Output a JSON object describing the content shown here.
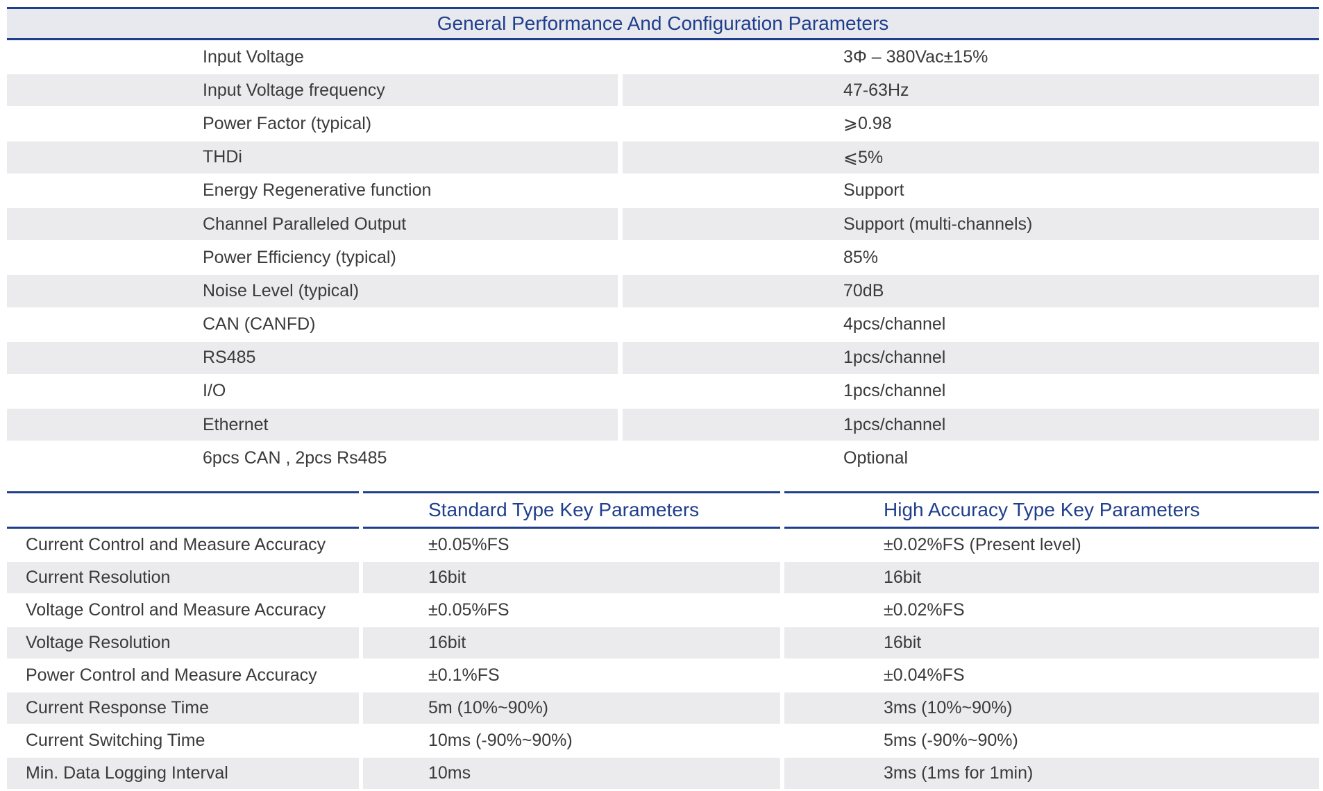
{
  "general": {
    "title": "General Performance And Configuration Parameters",
    "rows": [
      {
        "param": "Input Voltage",
        "value": "3Φ – 380Vac±15%"
      },
      {
        "param": "Input Voltage frequency",
        "value": "47-63Hz"
      },
      {
        "param": "Power Factor (typical)",
        "value": "⩾0.98"
      },
      {
        "param": "THDi",
        "value": "⩽5%"
      },
      {
        "param": "Energy Regenerative function",
        "value": "Support"
      },
      {
        "param": "Channel Paralleled Output",
        "value": "Support (multi-channels)"
      },
      {
        "param": "Power Efficiency (typical)",
        "value": "85%"
      },
      {
        "param": "Noise Level (typical)",
        "value": "70dB"
      },
      {
        "param": "CAN (CANFD)",
        "value": "4pcs/channel"
      },
      {
        "param": "RS485",
        "value": "1pcs/channel"
      },
      {
        "param": "I/O",
        "value": "1pcs/channel"
      },
      {
        "param": "Ethernet",
        "value": "1pcs/channel"
      },
      {
        "param": "6pcs CAN , 2pcs Rs485",
        "value": "Optional"
      }
    ]
  },
  "key": {
    "headers": [
      "",
      "Standard Type Key Parameters",
      "High Accuracy Type Key Parameters"
    ],
    "rows": [
      {
        "param": "Current Control and Measure Accuracy",
        "standard": "±0.05%FS",
        "high": "±0.02%FS (Present level)"
      },
      {
        "param": "Current Resolution",
        "standard": "16bit",
        "high": "16bit"
      },
      {
        "param": "Voltage Control and Measure Accuracy",
        "standard": "±0.05%FS",
        "high": "±0.02%FS"
      },
      {
        "param": "Voltage Resolution",
        "standard": "16bit",
        "high": "16bit"
      },
      {
        "param": "Power Control and Measure Accuracy",
        "standard": "±0.1%FS",
        "high": "±0.04%FS"
      },
      {
        "param": "Current Response Time",
        "standard": "5m (10%~90%)",
        "high": "3ms (10%~90%)"
      },
      {
        "param": "Current Switching Time",
        "standard": "10ms (-90%~90%)",
        "high": "5ms (-90%~90%)"
      },
      {
        "param": "Min. Data Logging Interval",
        "standard": "10ms",
        "high": "3ms  (1ms for 1min)"
      }
    ]
  },
  "colors": {
    "accent": "#1f3e8c",
    "row_shade": "#ebebee",
    "text": "#3a3a3a"
  }
}
